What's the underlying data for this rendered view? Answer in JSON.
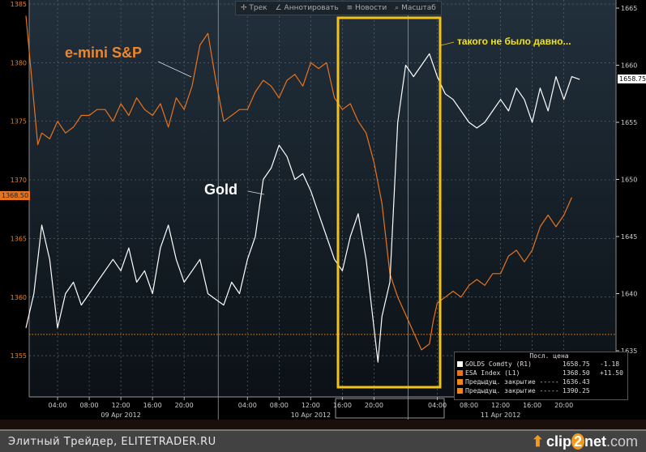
{
  "toolbar": {
    "items": [
      "Трек",
      "Аннотировать",
      "Новости",
      "Масштаб"
    ]
  },
  "annotations": {
    "sp": "e-mini S&P",
    "gold": "Gold",
    "note": "такого не было давно..."
  },
  "price_tags": {
    "left": "1368.50",
    "right": "1658.75"
  },
  "legend": {
    "header": "Посл. цена",
    "rows": [
      {
        "name": "GOLDS Comdty (R1)",
        "value": "1658.75",
        "change": "-1.18",
        "color": "#ffffff"
      },
      {
        "name": "ESA Index (L1)",
        "value": "1368.50",
        "change": "+11.50",
        "color": "#e8731c"
      },
      {
        "name": "Предыдущ. закрытие -----",
        "value": "1636.43",
        "change": "",
        "color": "#f0861e"
      },
      {
        "name": "Предыдущ. закрытие -----",
        "value": "1390.25",
        "change": "",
        "color": "#f0861e"
      }
    ]
  },
  "footer": {
    "text": "Элитный Трейдер, ELITETRADER.RU",
    "logo_a": "clip",
    "logo_b": "2",
    "logo_c": "net",
    "logo_d": ".com"
  },
  "chart_data": {
    "type": "line",
    "x_unit": "hours since 09 Apr 2012 00:00",
    "x_ticks": [
      {
        "h": 4,
        "label": "04:00"
      },
      {
        "h": 8,
        "label": "08:00"
      },
      {
        "h": 12,
        "label": "12:00"
      },
      {
        "h": 16,
        "label": "16:00"
      },
      {
        "h": 20,
        "label": "20:00"
      },
      {
        "h": 28,
        "label": "04:00"
      },
      {
        "h": 32,
        "label": "08:00"
      },
      {
        "h": 36,
        "label": "12:00"
      },
      {
        "h": 40,
        "label": "16:00"
      },
      {
        "h": 44,
        "label": "20:00"
      },
      {
        "h": 52,
        "label": "04:00"
      },
      {
        "h": 56,
        "label": "08:00"
      },
      {
        "h": 60,
        "label": "12:00"
      },
      {
        "h": 64,
        "label": "16:00"
      },
      {
        "h": 68,
        "label": "20:00"
      }
    ],
    "date_labels": [
      {
        "h": 12,
        "label": "09 Apr 2012"
      },
      {
        "h": 36,
        "label": "10 Apr 2012"
      },
      {
        "h": 60,
        "label": "11 Apr 2012"
      }
    ],
    "left_axis": {
      "ticks": [
        1385,
        1380,
        1375,
        1370,
        1365,
        1360,
        1355
      ],
      "range": [
        1352,
        1385.3
      ]
    },
    "right_axis": {
      "ticks": [
        1665,
        1660,
        1655,
        1650,
        1645,
        1640,
        1635
      ],
      "range": [
        1630,
        1665.7
      ]
    },
    "prev_close_gold": 1636.43,
    "series": [
      {
        "name": "e-mini S&P (ESA Index)",
        "axis": "left",
        "color": "#e8731c",
        "x": [
          0,
          1.5,
          2,
          3,
          4,
          5,
          6,
          7,
          8,
          9,
          10,
          11,
          12,
          13,
          14,
          15,
          16,
          17,
          18,
          19,
          20,
          21,
          22,
          23,
          24,
          25,
          26,
          27,
          28,
          29,
          30,
          31,
          32,
          33,
          34,
          35,
          36,
          37,
          38,
          39,
          40,
          41,
          42,
          43,
          44,
          45,
          46,
          47,
          48,
          49,
          50,
          51,
          51.5,
          52,
          53,
          54,
          55,
          56,
          57,
          58,
          59,
          60,
          61,
          62,
          63,
          64,
          65,
          66,
          67,
          68,
          69
        ],
        "y": [
          1384,
          1373,
          1374,
          1373.5,
          1375,
          1374,
          1374.5,
          1375.5,
          1375.5,
          1376,
          1376,
          1375,
          1376.5,
          1375.5,
          1377,
          1376,
          1375.5,
          1376.5,
          1374.5,
          1377,
          1376,
          1378,
          1381.5,
          1382.5,
          1378.5,
          1375,
          1375.5,
          1376,
          1376,
          1377.5,
          1378.5,
          1378,
          1377,
          1378.5,
          1379,
          1378,
          1380,
          1379.5,
          1380,
          1377,
          1376,
          1376.5,
          1375,
          1374,
          1371.5,
          1368,
          1362,
          1360,
          1358.5,
          1357,
          1355.5,
          1356,
          1358,
          1359.5,
          1360,
          1360.5,
          1360,
          1361,
          1361.5,
          1361,
          1362,
          1362,
          1363.5,
          1364,
          1363,
          1364,
          1366,
          1367,
          1366,
          1367,
          1368.5
        ]
      },
      {
        "name": "Gold (GOLDS Comdty)",
        "axis": "right",
        "color": "#ffffff",
        "x": [
          0,
          1,
          2,
          3,
          4,
          5,
          6,
          7,
          8,
          9,
          10,
          11,
          12,
          13,
          14,
          15,
          16,
          17,
          18,
          19,
          20,
          21,
          22,
          23,
          24,
          25,
          26,
          27,
          28,
          29,
          30,
          31,
          32,
          33,
          34,
          35,
          36,
          37,
          38,
          39,
          40,
          41,
          42,
          43,
          44,
          44.5,
          45,
          46,
          47,
          48,
          49,
          50,
          51,
          52,
          53,
          54,
          55,
          56,
          57,
          58,
          59,
          60,
          61,
          62,
          63,
          64,
          65,
          66,
          67,
          68,
          69,
          70
        ],
        "y": [
          1637,
          1640,
          1646,
          1643,
          1637,
          1640,
          1641,
          1639,
          1640,
          1641,
          1642,
          1643,
          1642,
          1644,
          1641,
          1642,
          1640,
          1644,
          1646,
          1643,
          1641,
          1642,
          1643,
          1640,
          1639.5,
          1639,
          1641,
          1640,
          1643,
          1645,
          1650,
          1651,
          1653,
          1652,
          1650,
          1650.5,
          1649,
          1647,
          1645,
          1643,
          1642,
          1645,
          1647,
          1643,
          1637,
          1634,
          1638,
          1641,
          1655,
          1660,
          1659,
          1660,
          1661,
          1659,
          1657.5,
          1657,
          1656,
          1655,
          1654.5,
          1655,
          1656,
          1657,
          1656,
          1658,
          1657,
          1655,
          1658,
          1656,
          1659,
          1657,
          1659,
          1658.75
        ]
      }
    ]
  }
}
